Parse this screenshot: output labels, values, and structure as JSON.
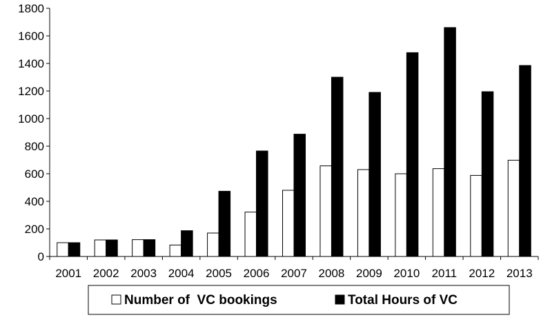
{
  "chart_data": {
    "type": "bar",
    "title": "",
    "xlabel": "",
    "ylabel": "",
    "categories": [
      "2001",
      "2002",
      "2003",
      "2004",
      "2005",
      "2006",
      "2007",
      "2008",
      "2009",
      "2010",
      "2011",
      "2012",
      "2013"
    ],
    "series": [
      {
        "name": "Number of  VC bookings",
        "color": "#ffffff",
        "values": [
          100,
          120,
          122,
          83,
          170,
          322,
          480,
          657,
          630,
          600,
          637,
          588,
          698
        ]
      },
      {
        "name": "Total Hours of VC",
        "color": "#000000",
        "values": [
          100,
          120,
          122,
          187,
          473,
          765,
          887,
          1300,
          1190,
          1478,
          1660,
          1195,
          1385
        ]
      }
    ],
    "ylim": [
      0,
      1800
    ],
    "yticks": [
      0,
      200,
      400,
      600,
      800,
      1000,
      1200,
      1400,
      1600,
      1800
    ],
    "grid": false,
    "legend_position": "bottom"
  }
}
